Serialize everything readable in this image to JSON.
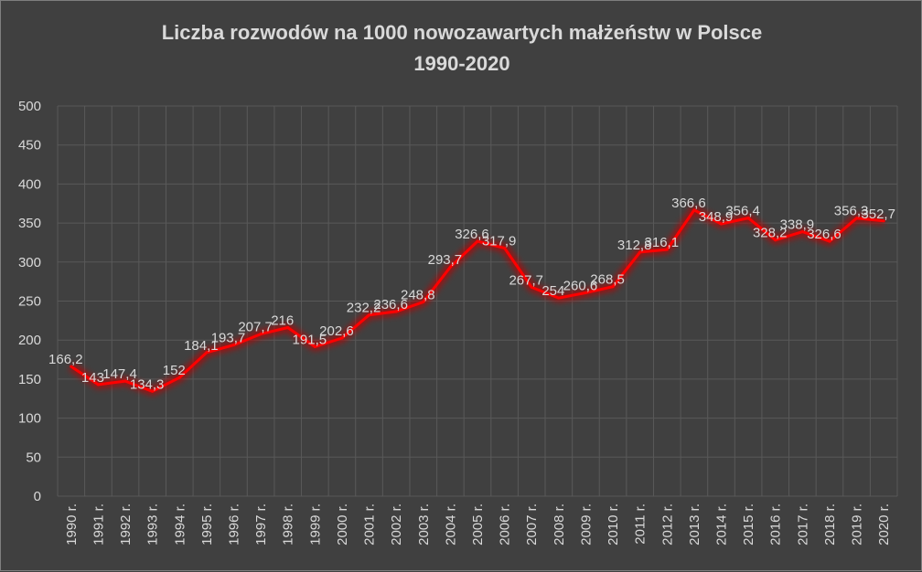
{
  "chart_data": {
    "type": "line",
    "title_line1": "Liczba rozwodów na 1000 nowozawartych małżeństw w Polsce",
    "title_line2": "1990-2020",
    "xlabel": "",
    "ylabel": "",
    "ylim": [
      0,
      500
    ],
    "yticks": [
      "0",
      "50",
      "100",
      "150",
      "200",
      "250",
      "300",
      "350",
      "400",
      "450",
      "500"
    ],
    "grid": true,
    "legend": "none",
    "categories": [
      "1990 r.",
      "1991 r.",
      "1992 r.",
      "1993 r.",
      "1994 r.",
      "1995 r.",
      "1996 r.",
      "1997 r.",
      "1998 r.",
      "1999 r.",
      "2000 r.",
      "2001 r.",
      "2002 r.",
      "2003 r.",
      "2004 r.",
      "2005 r.",
      "2006 r.",
      "2007 r.",
      "2008 r.",
      "2009 r.",
      "2010 r.",
      "2011 r.",
      "2012 r.",
      "2013 r.",
      "2014 r.",
      "2015 r.",
      "2016 r.",
      "2017 r.",
      "2018 r.",
      "2019 r.",
      "2020 r."
    ],
    "series": [
      {
        "name": "Liczba rozwodów na 1000 nowozawartych małżeństw",
        "values": [
          166.2,
          143,
          147.4,
          134.3,
          152,
          184.1,
          193.7,
          207.7,
          216,
          191.5,
          202.6,
          232.2,
          236.6,
          248.8,
          293.7,
          326.6,
          317.9,
          267.7,
          254,
          260.6,
          268.5,
          312.8,
          316.1,
          366.6,
          348.9,
          356.4,
          328.2,
          338.9,
          326.6,
          356.3,
          352.7
        ],
        "labels": [
          "166,2",
          "143",
          "147,4",
          "134,3",
          "152",
          "184,1",
          "193,7",
          "207,7",
          "216",
          "191,5",
          "202,6",
          "232,2",
          "236,6",
          "248,8",
          "293,7",
          "326,6",
          "317,9",
          "267,7",
          "254",
          "260,6",
          "268,5",
          "312,8",
          "316,1",
          "366,6",
          "348,9",
          "356,4",
          "328,2",
          "338,9",
          "326,6",
          "356,3",
          "352,7"
        ]
      }
    ],
    "colors": {
      "background": "#404040",
      "grid": "#595959",
      "text": "#d9d9d9",
      "line": "#ff0000",
      "glow": "#c00000"
    }
  }
}
